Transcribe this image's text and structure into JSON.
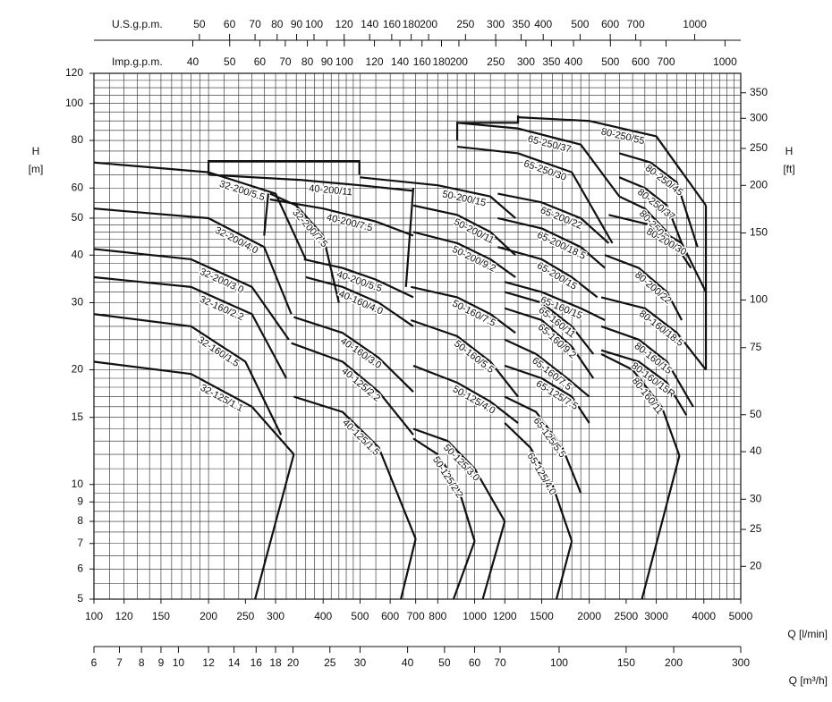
{
  "chart_data": {
    "type": "line",
    "xscale": "log",
    "yscale": "log",
    "grid": true,
    "color": "#111111",
    "xlabel": "Q [l/min]",
    "ylabel": "H",
    "ylabel_unit": "[m]",
    "y2label": "H",
    "y2label_unit": "[ft]",
    "xlim": [
      100,
      5000
    ],
    "xticks": [
      100,
      120,
      150,
      200,
      250,
      300,
      400,
      500,
      600,
      700,
      800,
      1000,
      1200,
      1500,
      2000,
      2500,
      3000,
      4000,
      5000
    ],
    "ylim": [
      5,
      120
    ],
    "yticks": [
      5,
      6,
      7,
      8,
      9,
      10,
      15,
      20,
      30,
      40,
      50,
      60,
      80,
      100,
      120
    ],
    "y2lim": [
      16.4,
      393.7
    ],
    "y2ticks": [
      20,
      25,
      30,
      40,
      50,
      75,
      100,
      150,
      200,
      250,
      300,
      350
    ],
    "us_gpm_axis": {
      "label": "U.S.g.p.m.",
      "lim": [
        26.42,
        1321
      ],
      "ticks": [
        50,
        60,
        70,
        80,
        90,
        100,
        120,
        140,
        160,
        180,
        200,
        250,
        300,
        350,
        400,
        500,
        600,
        700,
        1000
      ]
    },
    "imp_gpm_axis": {
      "label": "Imp.g.p.m.",
      "lim": [
        22.0,
        1099.8
      ],
      "ticks": [
        40,
        50,
        60,
        70,
        80,
        90,
        100,
        120,
        140,
        160,
        180,
        200,
        250,
        300,
        350,
        400,
        500,
        600,
        700,
        1000
      ]
    },
    "m3h_axis": {
      "label": "Q [m³/h]",
      "lim": [
        6,
        300
      ],
      "ticks": [
        6,
        7,
        8,
        9,
        10,
        12,
        14,
        16,
        18,
        20,
        25,
        30,
        40,
        50,
        60,
        70,
        100,
        150,
        200,
        300
      ]
    },
    "x_gridlines": [
      110,
      120,
      130,
      140,
      150,
      160,
      170,
      180,
      190,
      200,
      220,
      240,
      260,
      280,
      300,
      320,
      340,
      360,
      380,
      400,
      420,
      440,
      460,
      480,
      500,
      550,
      600,
      650,
      700,
      750,
      800,
      850,
      900,
      950,
      1000,
      1100,
      1200,
      1300,
      1400,
      1500,
      1600,
      1700,
      1800,
      1900,
      2000,
      2200,
      2400,
      2600,
      2800,
      3000,
      3200,
      3400,
      3600,
      3800,
      4000,
      4200,
      4400,
      4600,
      4800
    ],
    "y_gridlines": [
      5.5,
      6,
      6.5,
      7,
      7.5,
      8,
      8.5,
      9,
      9.5,
      10,
      11,
      12,
      13,
      14,
      15,
      16,
      17,
      18,
      19,
      20,
      22,
      24,
      26,
      28,
      30,
      32,
      34,
      36,
      38,
      40,
      42,
      44,
      46,
      48,
      50,
      55,
      60,
      65,
      70,
      75,
      80,
      85,
      90,
      95,
      100,
      105,
      110,
      115
    ],
    "series": [
      {
        "name": "32-200/5.5",
        "x": [
          100,
          200,
          300,
          360
        ],
        "values": [
          70,
          66,
          58,
          39
        ]
      },
      {
        "name": "32-200/4.0",
        "x": [
          100,
          200,
          280,
          330
        ],
        "values": [
          53,
          50,
          42,
          28
        ]
      },
      {
        "name": "32-200/3.0",
        "x": [
          100,
          180,
          260,
          325
        ],
        "values": [
          41.5,
          39,
          33,
          24
        ]
      },
      {
        "name": "32-160/2.2",
        "x": [
          100,
          180,
          260,
          320
        ],
        "values": [
          35,
          33,
          28,
          19
        ]
      },
      {
        "name": "32-160/1.5",
        "x": [
          100,
          180,
          250,
          310
        ],
        "values": [
          28,
          26,
          21,
          13.5
        ]
      },
      {
        "name": "32-125/1.1",
        "x": [
          100,
          180,
          260,
          335
        ],
        "values": [
          21,
          19.5,
          16,
          12
        ]
      },
      {
        "name": "32-200/7.5",
        "x": [
          290,
          340,
          400,
          440
        ],
        "values": [
          58,
          54,
          45,
          30
        ]
      },
      {
        "name": "40-200/11",
        "x": [
          200,
          350,
          500,
          690
        ],
        "values": [
          65,
          63,
          61,
          59
        ]
      },
      {
        "name": "40-200/7.5",
        "x": [
          290,
          400,
          550,
          690
        ],
        "values": [
          56,
          53,
          49,
          45
        ]
      },
      {
        "name": "40-200/5.5",
        "x": [
          356,
          450,
          550,
          690
        ],
        "values": [
          39,
          37,
          34.5,
          31
        ]
      },
      {
        "name": "40-160/4.0",
        "x": [
          360,
          450,
          560,
          690
        ],
        "values": [
          35,
          33,
          30,
          26
        ]
      },
      {
        "name": "40-160/3.0",
        "x": [
          335,
          450,
          560,
          690
        ],
        "values": [
          27.5,
          25,
          21.5,
          17.5
        ]
      },
      {
        "name": "40-125/2.2",
        "x": [
          330,
          450,
          560,
          690
        ],
        "values": [
          23.5,
          21,
          17.5,
          13.5
        ]
      },
      {
        "name": "40-125/1.5",
        "x": [
          335,
          450,
          560,
          700
        ],
        "values": [
          17,
          15.5,
          12.5,
          7.2
        ]
      },
      {
        "name": "50-200/15",
        "x": [
          500,
          800,
          1100,
          1280
        ],
        "values": [
          64,
          61,
          57,
          50
        ]
      },
      {
        "name": "50-200/11",
        "x": [
          690,
          900,
          1100,
          1280
        ],
        "values": [
          54,
          51,
          46,
          40
        ]
      },
      {
        "name": "50-200/9.2",
        "x": [
          690,
          900,
          1100,
          1280
        ],
        "values": [
          46,
          43,
          39,
          35
        ]
      },
      {
        "name": "50-160/7.5",
        "x": [
          680,
          900,
          1100,
          1280
        ],
        "values": [
          33,
          31,
          28,
          25
        ]
      },
      {
        "name": "50-160/5.5",
        "x": [
          680,
          900,
          1100,
          1300
        ],
        "values": [
          27,
          24.5,
          21,
          17
        ]
      },
      {
        "name": "50-125/4.0",
        "x": [
          690,
          900,
          1100,
          1300
        ],
        "values": [
          20.5,
          18.5,
          16.5,
          14.5
        ]
      },
      {
        "name": "50-125/3.0",
        "x": [
          690,
          850,
          1000,
          1200
        ],
        "values": [
          14,
          13,
          11,
          8
        ]
      },
      {
        "name": "50-125/2.2",
        "x": [
          690,
          800,
          900,
          1000
        ],
        "values": [
          13.2,
          12,
          10,
          7.1
        ]
      },
      {
        "name": "65-250/37",
        "x": [
          900,
          1300,
          1900,
          2400
        ],
        "values": [
          89,
          86,
          78,
          57
        ]
      },
      {
        "name": "65-250/30",
        "x": [
          900,
          1300,
          1800,
          2300
        ],
        "values": [
          77,
          74,
          66,
          43
        ]
      },
      {
        "name": "65-200/22",
        "x": [
          1150,
          1500,
          1900,
          2250
        ],
        "values": [
          58,
          55,
          50,
          43
        ]
      },
      {
        "name": "65-200/18.5",
        "x": [
          1150,
          1500,
          1900,
          2200
        ],
        "values": [
          50,
          47,
          42,
          37
        ]
      },
      {
        "name": "65-200/15",
        "x": [
          1150,
          1500,
          1800,
          2100
        ],
        "values": [
          42,
          39,
          35,
          31
        ]
      },
      {
        "name": "65-160/15",
        "x": [
          1200,
          1500,
          1900,
          2200
        ],
        "values": [
          34,
          32,
          29,
          27
        ]
      },
      {
        "name": "65-160/11",
        "x": [
          1200,
          1500,
          1800,
          2050
        ],
        "values": [
          32,
          30,
          26,
          22
        ]
      },
      {
        "name": "65-160/9.2",
        "x": [
          1200,
          1500,
          1800,
          2050
        ],
        "values": [
          29,
          27,
          23,
          19
        ]
      },
      {
        "name": "65-160/7.5",
        "x": [
          1200,
          1450,
          1750,
          2000
        ],
        "values": [
          24,
          22,
          19,
          17
        ]
      },
      {
        "name": "65-125/7.5",
        "x": [
          1200,
          1500,
          1800,
          2000
        ],
        "values": [
          20.5,
          19,
          17,
          14.5
        ]
      },
      {
        "name": "65-125/5.5",
        "x": [
          1200,
          1450,
          1700,
          1900
        ],
        "values": [
          17,
          15.5,
          12.5,
          9.5
        ]
      },
      {
        "name": "65-125/4.0",
        "x": [
          1200,
          1400,
          1600,
          1800
        ],
        "values": [
          14.5,
          12.5,
          10,
          7.1
        ]
      },
      {
        "name": "80-250/55",
        "x": [
          1300,
          2000,
          3000,
          4050
        ],
        "values": [
          92,
          90,
          82,
          54
        ]
      },
      {
        "name": "80-250/45",
        "x": [
          2400,
          2900,
          3400,
          3850
        ],
        "values": [
          74,
          70,
          62,
          42
        ]
      },
      {
        "name": "80-250/37",
        "x": [
          2400,
          2800,
          3200,
          3600
        ],
        "values": [
          64,
          60,
          54,
          40
        ]
      },
      {
        "name": "80-250/31",
        "x": [
          2400,
          2800,
          3200,
          3700
        ],
        "values": [
          57,
          53,
          46,
          37
        ]
      },
      {
        "name": "80-200/30",
        "x": [
          2250,
          2900,
          3500,
          4050
        ],
        "values": [
          51,
          48,
          43,
          32
        ]
      },
      {
        "name": "80-200/22",
        "x": [
          2200,
          2700,
          3200,
          3500
        ],
        "values": [
          40,
          37,
          32,
          27
        ]
      },
      {
        "name": "80-160/18.5",
        "x": [
          2150,
          2800,
          3400,
          4050
        ],
        "values": [
          31,
          29,
          25,
          20
        ]
      },
      {
        "name": "80-160/15",
        "x": [
          2150,
          2700,
          3200,
          3750
        ],
        "values": [
          26,
          24,
          21,
          16
        ]
      },
      {
        "name": "80-160/15R",
        "x": [
          2150,
          2700,
          3200,
          3600
        ],
        "values": [
          22.5,
          21,
          18.5,
          15.2
        ]
      },
      {
        "name": "80-160/11",
        "x": [
          2150,
          2600,
          3100,
          3450
        ],
        "values": [
          22,
          20,
          16,
          11.9
        ]
      }
    ],
    "boundaries": [
      {
        "x": [
          200,
          200,
          498,
          498
        ],
        "values": [
          65,
          70.6,
          70.6,
          65
        ]
      },
      {
        "x": [
          900,
          900,
          1300,
          1300
        ],
        "values": [
          80,
          89,
          89,
          93
        ]
      },
      {
        "x": [
          287,
          280
        ],
        "values": [
          58,
          45
        ]
      },
      {
        "x": [
          690,
          660
        ],
        "values": [
          60,
          33
        ]
      },
      {
        "x": [
          335,
          265
        ],
        "values": [
          12,
          5
        ]
      },
      {
        "x": [
          700,
          640
        ],
        "values": [
          7.2,
          5
        ]
      },
      {
        "x": [
          1000,
          880
        ],
        "values": [
          7.1,
          5
        ]
      },
      {
        "x": [
          1200,
          1050
        ],
        "values": [
          8,
          5
        ]
      },
      {
        "x": [
          1800,
          1640
        ],
        "values": [
          7.1,
          5
        ]
      },
      {
        "x": [
          3450,
          2750
        ],
        "values": [
          11.9,
          5
        ]
      },
      {
        "x": [
          4050,
          4050
        ],
        "values": [
          54,
          20
        ]
      }
    ]
  }
}
